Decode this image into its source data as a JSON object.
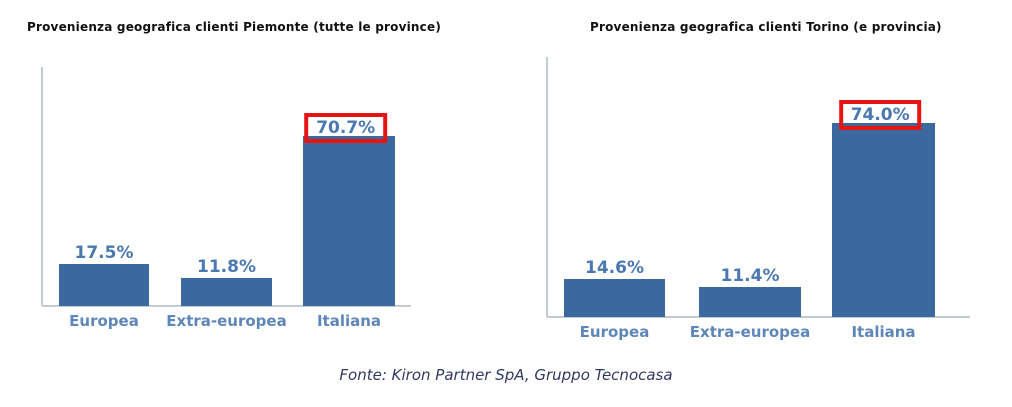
{
  "page": {
    "background_color": "#ffffff"
  },
  "footer": {
    "source_text": "Fonte: Kiron Partner SpA, Gruppo Tecnocasa",
    "text_color": "#303a63"
  },
  "chart_data": [
    {
      "type": "bar",
      "title": "Provenienza geografica clienti Piemonte (tutte le province)",
      "categories": [
        "Europea",
        "Extra-europea",
        "Italiana"
      ],
      "values": [
        17.5,
        11.8,
        70.7
      ],
      "value_labels": [
        "17.5%",
        "11.8%",
        "70.7%"
      ],
      "unit": "%",
      "ylim": [
        0,
        100
      ],
      "grid": false,
      "legend": false,
      "highlighted_category": "Italiana",
      "highlight_style": "red-box-around-value-label",
      "highlight_color": "#e81414",
      "bar_color": "#3c699d",
      "value_label_color": "#4a78b0",
      "category_label_color": "#5e86b8",
      "axis_color": "#c0cbd4"
    },
    {
      "type": "bar",
      "title": "Provenienza geografica clienti Torino (e provincia)",
      "categories": [
        "Europea",
        "Extra-europea",
        "Italiana"
      ],
      "values": [
        14.6,
        11.4,
        74.0
      ],
      "value_labels": [
        "14.6%",
        "11.4%",
        "74.0%"
      ],
      "unit": "%",
      "ylim": [
        0,
        100
      ],
      "grid": false,
      "legend": false,
      "highlighted_category": "Italiana",
      "highlight_style": "red-box-around-value-label",
      "highlight_color": "#e81414",
      "bar_color": "#3c699d",
      "value_label_color": "#4a78b0",
      "category_label_color": "#5e86b8",
      "axis_color": "#c0cbd4"
    }
  ]
}
